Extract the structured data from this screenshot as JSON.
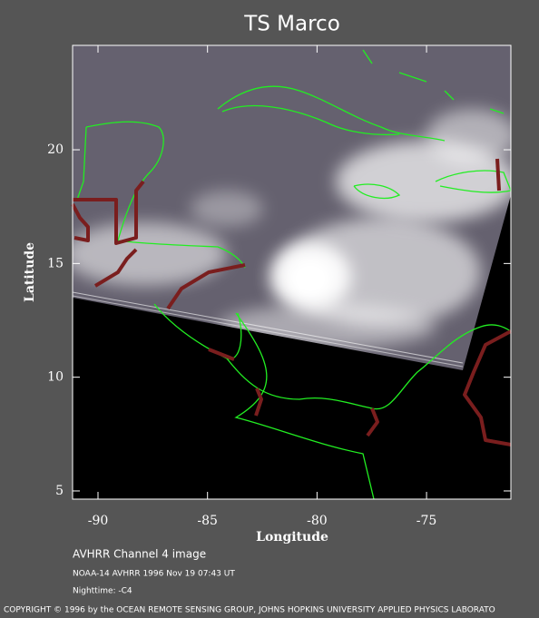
{
  "chart_data": {
    "type": "map",
    "title": "TS Marco",
    "xlabel": "Longitude",
    "ylabel": "Latitude",
    "xlim": [
      -91.16,
      -71.15
    ],
    "ylim": [
      4.64,
      24.59
    ],
    "xticks": [
      -90,
      -85,
      -80,
      -75
    ],
    "yticks": [
      5,
      10,
      15,
      20
    ],
    "captions": [
      "AVHRR Channel 4 image",
      "NOAA-14 AVHRR 1996 Nov 19 07:43 UT",
      "Nighttime: -C4"
    ],
    "copyright": "COPYRIGHT © 1996 by the OCEAN REMOTE SENSING GROUP, JOHNS HOPKINS UNIVERSITY APPLIED PHYSICS LABORATO"
  }
}
